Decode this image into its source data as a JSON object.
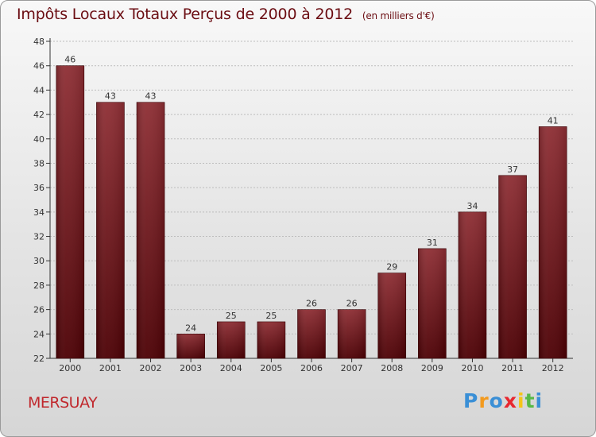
{
  "title": {
    "main": "Impôts Locaux Totaux Perçus de 2000 à 2012",
    "unit": "(en milliers d'€)"
  },
  "commune": "MERSUAY",
  "logo": {
    "letters": [
      "P",
      "r",
      "o",
      "x",
      "i",
      "t",
      "i"
    ],
    "colors": [
      "#3a8fd6",
      "#f39a1e",
      "#3a8fd6",
      "#e8272f",
      "#f5c518",
      "#58b947",
      "#3a8fd6"
    ]
  },
  "colors": {
    "bar_top": "#8e2e34",
    "bar_bottom": "#4c0004",
    "axis": "#333333",
    "grid": "#bdbdbd",
    "label": "#333333"
  },
  "chart_data": {
    "type": "bar",
    "categories": [
      "2000",
      "2001",
      "2002",
      "2003",
      "2004",
      "2005",
      "2006",
      "2007",
      "2008",
      "2009",
      "2010",
      "2011",
      "2012"
    ],
    "values": [
      46,
      43,
      43,
      24,
      25,
      25,
      26,
      26,
      29,
      31,
      34,
      37,
      41
    ],
    "ylim": [
      22,
      48
    ],
    "yticks": [
      22,
      24,
      26,
      28,
      30,
      32,
      34,
      36,
      38,
      40,
      42,
      44,
      46,
      48
    ],
    "grid": true,
    "data_labels": true
  }
}
